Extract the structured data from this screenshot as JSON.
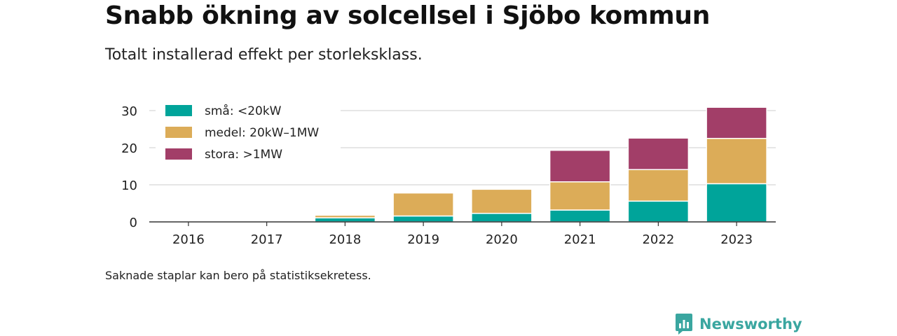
{
  "title": "Snabb ökning av solcellsel i Sjöbo kommun",
  "subtitle": "Totalt installerad effekt per storleksklass.",
  "note": "Saknade staplar kan bero på statistiksekretess.",
  "brand": "Newsworthy",
  "colors": {
    "sma": "#00a49a",
    "medel": "#dcac58",
    "stora": "#a23e68",
    "grid": "#dddddd",
    "brand": "#3aa6a0"
  },
  "chart_data": {
    "type": "bar",
    "stacked": true,
    "categories": [
      "2016",
      "2017",
      "2018",
      "2019",
      "2020",
      "2021",
      "2022",
      "2023"
    ],
    "series": [
      {
        "name": "små: <20kW",
        "key": "sma",
        "values": [
          0,
          0,
          1.1,
          1.6,
          2.3,
          3.2,
          5.6,
          10.3
        ]
      },
      {
        "name": "medel: 20kW–1MW",
        "key": "medel",
        "values": [
          0,
          0,
          0.7,
          6.2,
          6.5,
          7.6,
          8.5,
          12.2
        ]
      },
      {
        "name": "stora: >1MW",
        "key": "stora",
        "values": [
          0,
          0,
          0,
          0,
          0,
          8.5,
          8.5,
          8.4
        ]
      }
    ],
    "yticks": [
      0,
      10,
      20,
      30
    ],
    "ylim": [
      0,
      32
    ],
    "xlabel": "",
    "ylabel": "",
    "grid": true,
    "legend_position": "top-left"
  }
}
